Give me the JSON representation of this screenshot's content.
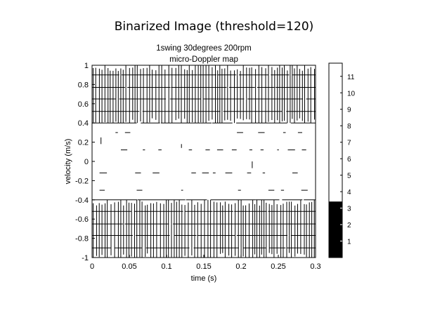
{
  "figure_title": "Binarized Image (threshold=120)",
  "chart_data": {
    "type": "heatmap",
    "title_lines": [
      "1swing 30degrees 200rpm",
      "micro-Doppler map"
    ],
    "xlabel": "time (s)",
    "ylabel": "velocity (m/s)",
    "xlim": [
      0,
      0.3
    ],
    "ylim": [
      -1,
      1
    ],
    "xticks": [
      "0",
      "0.05",
      "0.1",
      "0.15",
      "0.2",
      "0.25",
      "0.3"
    ],
    "yticks": [
      "1",
      "0.8",
      "0.6",
      "0.4",
      "0.2",
      "0",
      "-0.2",
      "-0.4",
      "-0.6",
      "-0.8",
      "-1"
    ],
    "binarized": true,
    "colors": {
      "background": "#ffffff",
      "foreground": "#000000"
    },
    "dense_band_velocities": [
      0.9,
      0.77,
      0.65,
      0.52,
      0.4,
      -0.4,
      -0.52,
      -0.65,
      -0.77,
      -0.9
    ],
    "sparse_band_velocities": [
      0.3,
      0.12,
      -0.12,
      -0.3
    ],
    "colorbar": {
      "ticks": [
        "11",
        "10",
        "9",
        "8",
        "7",
        "6",
        "5",
        "4",
        "3",
        "2",
        "1"
      ],
      "range": [
        0,
        11.8
      ],
      "black_below": 3.4
    }
  }
}
